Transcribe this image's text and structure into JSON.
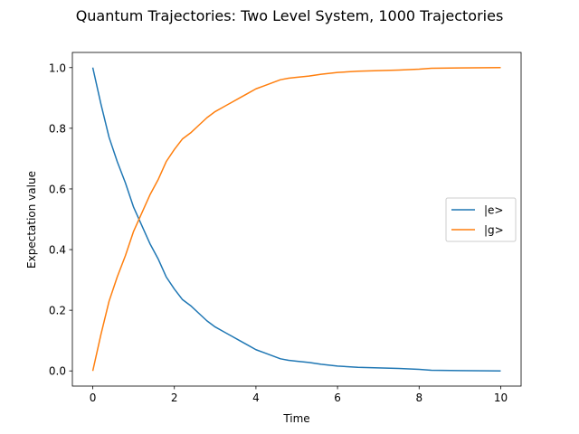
{
  "chart_data": {
    "type": "line",
    "title": "Quantum Trajectories: Two Level System, 1000 Trajectories",
    "xlabel": "Time",
    "ylabel": "Expectation value",
    "xlim": [
      -0.5,
      10.5
    ],
    "ylim": [
      -0.05,
      1.05
    ],
    "xticks": [
      0,
      2,
      4,
      6,
      8,
      10
    ],
    "yticks": [
      0.0,
      0.2,
      0.4,
      0.6,
      0.8,
      1.0
    ],
    "xtick_labels": [
      "0",
      "2",
      "4",
      "6",
      "8",
      "10"
    ],
    "ytick_labels": [
      "0.0",
      "0.2",
      "0.4",
      "0.6",
      "0.8",
      "1.0"
    ],
    "grid": false,
    "legend_position": "center-right",
    "series": [
      {
        "name": "|e>",
        "color": "#1f77b4",
        "x": [
          0,
          0.2,
          0.4,
          0.6,
          0.8,
          1.0,
          1.2,
          1.4,
          1.6,
          1.8,
          2.0,
          2.2,
          2.4,
          2.6,
          2.8,
          3.0,
          3.2,
          3.4,
          3.6,
          3.8,
          4.0,
          4.2,
          4.4,
          4.6,
          4.8,
          5.0,
          5.3,
          5.6,
          6.0,
          6.5,
          7.0,
          7.5,
          8.0,
          8.3,
          9.0,
          10.0
        ],
        "values": [
          1.0,
          0.88,
          0.77,
          0.69,
          0.62,
          0.54,
          0.48,
          0.42,
          0.37,
          0.31,
          0.27,
          0.235,
          0.215,
          0.19,
          0.165,
          0.145,
          0.13,
          0.115,
          0.1,
          0.085,
          0.07,
          0.06,
          0.05,
          0.04,
          0.035,
          0.032,
          0.028,
          0.022,
          0.016,
          0.012,
          0.01,
          0.008,
          0.005,
          0.002,
          0.001,
          0.0
        ]
      },
      {
        "name": "|g>",
        "color": "#ff7f0e",
        "x": [
          0,
          0.2,
          0.4,
          0.6,
          0.8,
          1.0,
          1.2,
          1.4,
          1.6,
          1.8,
          2.0,
          2.2,
          2.4,
          2.6,
          2.8,
          3.0,
          3.2,
          3.4,
          3.6,
          3.8,
          4.0,
          4.2,
          4.4,
          4.6,
          4.8,
          5.0,
          5.3,
          5.6,
          6.0,
          6.5,
          7.0,
          7.5,
          8.0,
          8.3,
          9.0,
          10.0
        ],
        "values": [
          0.0,
          0.12,
          0.23,
          0.31,
          0.38,
          0.46,
          0.52,
          0.58,
          0.63,
          0.69,
          0.73,
          0.765,
          0.785,
          0.81,
          0.835,
          0.855,
          0.87,
          0.885,
          0.9,
          0.915,
          0.93,
          0.94,
          0.95,
          0.96,
          0.965,
          0.968,
          0.972,
          0.978,
          0.984,
          0.988,
          0.99,
          0.992,
          0.995,
          0.998,
          0.999,
          1.0
        ]
      }
    ]
  }
}
